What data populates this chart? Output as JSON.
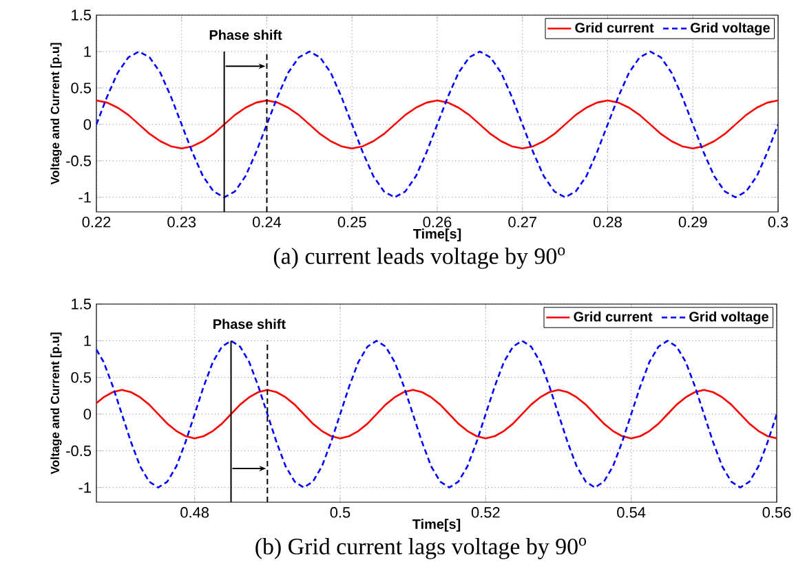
{
  "chart_data": [
    {
      "type": "line",
      "xlabel": "Time[s]",
      "ylabel": "Voltage and Current [p.u]",
      "title": "(a)   current leads voltage by 90$^{o}$",
      "annotations": [
        "Phase shift"
      ],
      "x": [
        0.22,
        0.22125,
        0.2225,
        0.22375,
        0.225,
        0.22625,
        0.2275,
        0.22875,
        0.23,
        0.23125,
        0.2325,
        0.23375,
        0.235,
        0.23625,
        0.2375,
        0.23875,
        0.24,
        0.24125,
        0.2425,
        0.24375,
        0.245,
        0.24625,
        0.2475,
        0.24875,
        0.25,
        0.25125,
        0.2525,
        0.25375,
        0.255,
        0.25625,
        0.2575,
        0.25875,
        0.26,
        0.26125,
        0.2625,
        0.26375,
        0.265,
        0.26625,
        0.2675,
        0.26875,
        0.27,
        0.27125,
        0.2725,
        0.27375,
        0.275,
        0.27625,
        0.2775,
        0.27875,
        0.28,
        0.28125,
        0.2825,
        0.28375,
        0.285,
        0.28625,
        0.2875,
        0.28875,
        0.29,
        0.29125,
        0.2925,
        0.29375,
        0.295,
        0.29625,
        0.2975,
        0.29875,
        0.3
      ],
      "series": [
        {
          "name": "Grid current",
          "color": "#ff0000",
          "line_style": "solid",
          "values": [
            0.33,
            0.3,
            0.23,
            0.13,
            0,
            -0.13,
            -0.23,
            -0.3,
            -0.33,
            -0.3,
            -0.23,
            -0.13,
            0,
            0.13,
            0.23,
            0.3,
            0.33,
            0.3,
            0.23,
            0.13,
            0,
            -0.13,
            -0.23,
            -0.3,
            -0.33,
            -0.3,
            -0.23,
            -0.13,
            0,
            0.13,
            0.23,
            0.3,
            0.33,
            0.3,
            0.23,
            0.13,
            0,
            -0.13,
            -0.23,
            -0.3,
            -0.33,
            -0.3,
            -0.23,
            -0.13,
            0,
            0.13,
            0.23,
            0.3,
            0.33,
            0.3,
            0.23,
            0.13,
            0,
            -0.13,
            -0.23,
            -0.3,
            -0.33,
            -0.3,
            -0.23,
            -0.13,
            0,
            0.13,
            0.23,
            0.3,
            0.33
          ]
        },
        {
          "name": "Grid voltage",
          "color": "#0000ff",
          "line_style": "dashed",
          "values": [
            0,
            0.38,
            0.71,
            0.92,
            1,
            0.92,
            0.71,
            0.38,
            0,
            -0.38,
            -0.71,
            -0.92,
            -1,
            -0.92,
            -0.71,
            -0.38,
            0,
            0.38,
            0.71,
            0.92,
            1,
            0.92,
            0.71,
            0.38,
            0,
            -0.38,
            -0.71,
            -0.92,
            -1,
            -0.92,
            -0.71,
            -0.38,
            0,
            0.38,
            0.71,
            0.92,
            1,
            0.92,
            0.71,
            0.38,
            0,
            -0.38,
            -0.71,
            -0.92,
            -1,
            -0.92,
            -0.71,
            -0.38,
            0,
            0.38,
            0.71,
            0.92,
            1,
            0.92,
            0.71,
            0.38,
            0,
            -0.38,
            -0.71,
            -0.92,
            -1,
            -0.92,
            -0.71,
            -0.38,
            0
          ]
        }
      ],
      "xlim": [
        0.22,
        0.3
      ],
      "ylim": [
        -1.2,
        1.5
      ],
      "xticks": [
        0.22,
        0.23,
        0.24,
        0.25,
        0.26,
        0.27,
        0.28,
        0.29,
        0.3
      ],
      "yticks": [
        -1,
        -0.5,
        0,
        0.5,
        1,
        1.5
      ],
      "ref_lines": [
        {
          "axis": "x",
          "value": 0.235,
          "color": "#000000",
          "line_style": "solid"
        },
        {
          "axis": "x",
          "value": 0.24,
          "color": "#000000",
          "line_style": "dashed"
        }
      ],
      "grid": true,
      "legend": "top right"
    },
    {
      "type": "line",
      "xlabel": "Time[s]",
      "ylabel": "Voltage and Current [p.u]",
      "title": "(b)   Grid current lags voltage by 90$^{o}$",
      "annotations": [
        "Phase shift"
      ],
      "x": [
        0.4665,
        0.4675,
        0.46875,
        0.47,
        0.47125,
        0.4725,
        0.47375,
        0.475,
        0.47625,
        0.4775,
        0.47875,
        0.48,
        0.48125,
        0.4825,
        0.48375,
        0.485,
        0.48625,
        0.4875,
        0.48875,
        0.49,
        0.49125,
        0.4925,
        0.49375,
        0.495,
        0.49625,
        0.4975,
        0.49875,
        0.5,
        0.50125,
        0.5025,
        0.50375,
        0.505,
        0.50625,
        0.5075,
        0.50875,
        0.51,
        0.51125,
        0.5125,
        0.51375,
        0.515,
        0.51625,
        0.5175,
        0.51875,
        0.52,
        0.52125,
        0.5225,
        0.52375,
        0.525,
        0.52625,
        0.5275,
        0.52875,
        0.53,
        0.53125,
        0.5325,
        0.53375,
        0.535,
        0.53625,
        0.5375,
        0.53875,
        0.54,
        0.54125,
        0.5425,
        0.54375,
        0.545,
        0.54625,
        0.5475,
        0.54875,
        0.55,
        0.55125,
        0.5525,
        0.55375,
        0.555,
        0.55625,
        0.5575,
        0.55875,
        0.56
      ],
      "series": [
        {
          "name": "Grid current",
          "color": "#ff0000",
          "line_style": "solid",
          "values": [
            0.15,
            0.23,
            0.3,
            0.33,
            0.3,
            0.23,
            0.13,
            0,
            -0.13,
            -0.23,
            -0.3,
            -0.33,
            -0.3,
            -0.23,
            -0.13,
            0,
            0.13,
            0.23,
            0.3,
            0.33,
            0.3,
            0.23,
            0.13,
            0,
            -0.13,
            -0.23,
            -0.3,
            -0.33,
            -0.3,
            -0.23,
            -0.13,
            0,
            0.13,
            0.23,
            0.3,
            0.33,
            0.3,
            0.23,
            0.13,
            0,
            -0.13,
            -0.23,
            -0.3,
            -0.33,
            -0.3,
            -0.23,
            -0.13,
            0,
            0.13,
            0.23,
            0.3,
            0.33,
            0.3,
            0.23,
            0.13,
            0,
            -0.13,
            -0.23,
            -0.3,
            -0.33,
            -0.3,
            -0.23,
            -0.13,
            0,
            0.13,
            0.23,
            0.3,
            0.33,
            0.3,
            0.23,
            0.13,
            0,
            -0.13,
            -0.23,
            -0.3,
            -0.33
          ]
        },
        {
          "name": "Grid voltage",
          "color": "#0000ff",
          "line_style": "dashed",
          "values": [
            0.88,
            0.71,
            0.38,
            0,
            -0.38,
            -0.71,
            -0.92,
            -1,
            -0.92,
            -0.71,
            -0.38,
            0,
            0.38,
            0.71,
            0.92,
            1,
            0.92,
            0.71,
            0.38,
            0,
            -0.38,
            -0.71,
            -0.92,
            -1,
            -0.92,
            -0.71,
            -0.38,
            0,
            0.38,
            0.71,
            0.92,
            1,
            0.92,
            0.71,
            0.38,
            0,
            -0.38,
            -0.71,
            -0.92,
            -1,
            -0.92,
            -0.71,
            -0.38,
            0,
            0.38,
            0.71,
            0.92,
            1,
            0.92,
            0.71,
            0.38,
            0,
            -0.38,
            -0.71,
            -0.92,
            -1,
            -0.92,
            -0.71,
            -0.38,
            0,
            0.38,
            0.71,
            0.92,
            1,
            0.92,
            0.71,
            0.38,
            0,
            -0.38,
            -0.71,
            -0.92,
            -1,
            -0.92,
            -0.71,
            -0.38,
            0
          ]
        }
      ],
      "xlim": [
        0.4665,
        0.56
      ],
      "ylim": [
        -1.2,
        1.5
      ],
      "xticks": [
        0.48,
        0.5,
        0.52,
        0.54,
        0.56
      ],
      "yticks": [
        -1,
        -0.5,
        0,
        0.5,
        1,
        1.5
      ],
      "ref_lines": [
        {
          "axis": "x",
          "value": 0.485,
          "color": "#000000",
          "line_style": "solid"
        },
        {
          "axis": "x",
          "value": 0.49,
          "color": "#000000",
          "line_style": "dashed"
        }
      ],
      "grid": true,
      "legend": "top right"
    }
  ]
}
